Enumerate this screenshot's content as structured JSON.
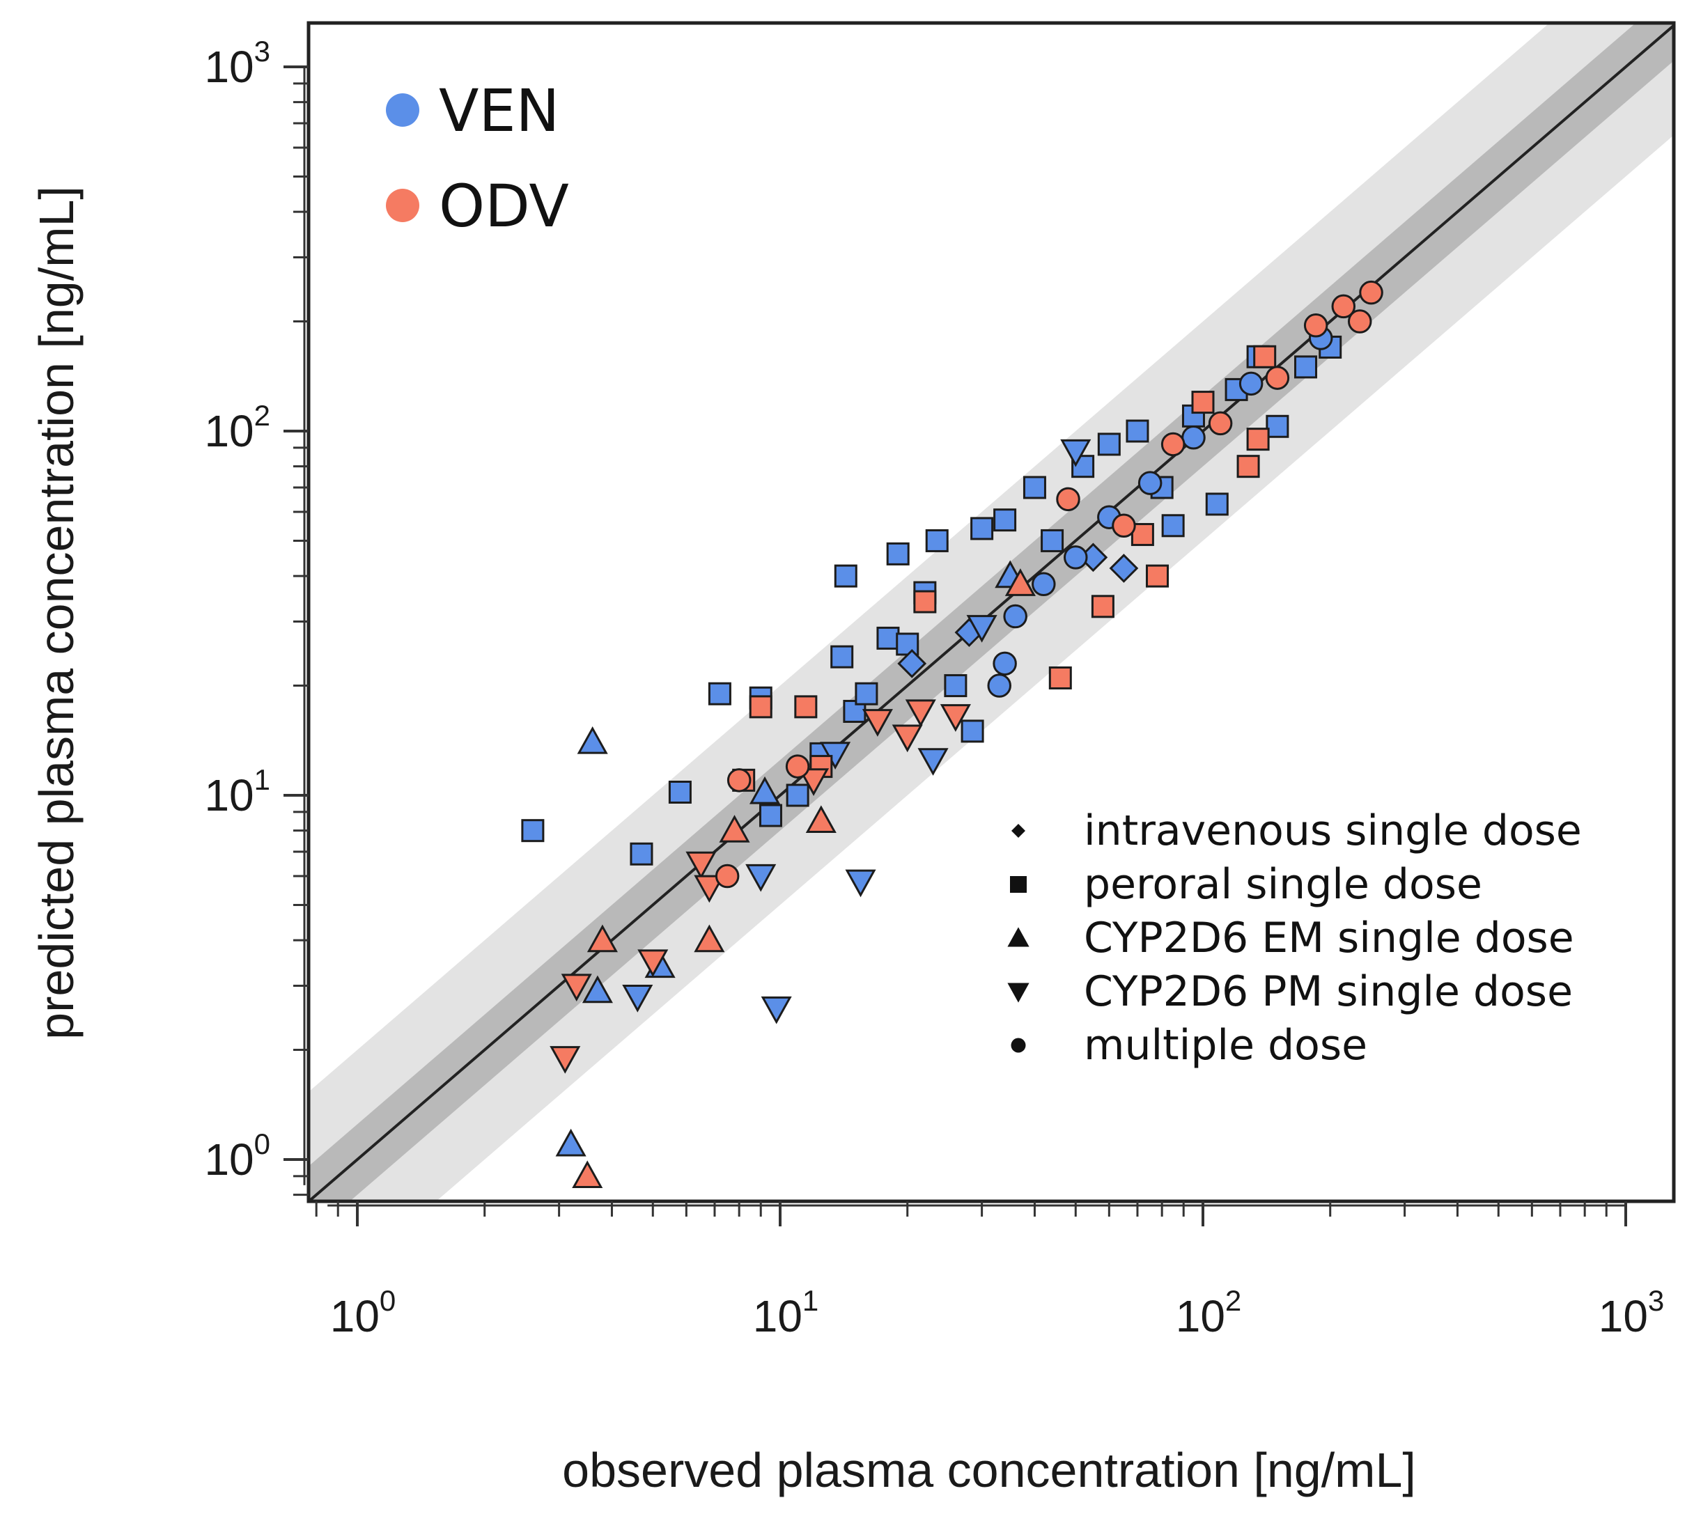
{
  "chart_data": {
    "type": "scatter",
    "title": "",
    "xlabel": "observed plasma concentration [ng/mL]",
    "ylabel": "predicted plasma concentration [ng/mL]",
    "x_scale": "log10",
    "y_scale": "log10",
    "xlim": [
      0.8,
      1300
    ],
    "ylim": [
      0.8,
      1300
    ],
    "x_ticks": [
      {
        "base": "10",
        "exp": "0",
        "value": 1
      },
      {
        "base": "10",
        "exp": "1",
        "value": 10
      },
      {
        "base": "10",
        "exp": "2",
        "value": 100
      },
      {
        "base": "10",
        "exp": "3",
        "value": 1000
      }
    ],
    "y_ticks": [
      {
        "base": "10",
        "exp": "0",
        "value": 1
      },
      {
        "base": "10",
        "exp": "1",
        "value": 10
      },
      {
        "base": "10",
        "exp": "2",
        "value": 100
      },
      {
        "base": "10",
        "exp": "3",
        "value": 1000
      }
    ],
    "grid": false,
    "reference_bands": [
      {
        "description": "line of identity",
        "factor": 1,
        "color": "#222222"
      },
      {
        "description": "1.25-fold",
        "factor": 1.25,
        "color": "#b9b9b9"
      },
      {
        "description": "2-fold",
        "factor": 2,
        "color": "#e3e3e3"
      }
    ],
    "legend_series": [
      {
        "label": "VEN",
        "color": "#5b8fe8"
      },
      {
        "label": "ODV",
        "color": "#f57b62"
      }
    ],
    "legend_shapes": [
      {
        "label": "intravenous single dose",
        "shape": "diamond"
      },
      {
        "label": "peroral single dose",
        "shape": "square"
      },
      {
        "label": "CYP2D6 EM single dose",
        "shape": "triangle-up"
      },
      {
        "label": "CYP2D6 PM single dose",
        "shape": "triangle-down"
      },
      {
        "label": "multiple dose",
        "shape": "circle"
      }
    ],
    "legend_placement": {
      "series": "top-left",
      "shapes": "bottom-right"
    },
    "series": [
      {
        "name": "VEN",
        "color": "#5b8fe8",
        "points": [
          {
            "x": 2.6,
            "y": 8.0,
            "shape": "square"
          },
          {
            "x": 4.7,
            "y": 6.9,
            "shape": "square"
          },
          {
            "x": 5.8,
            "y": 10.2,
            "shape": "square"
          },
          {
            "x": 7.2,
            "y": 19.0,
            "shape": "square"
          },
          {
            "x": 9.0,
            "y": 18.5,
            "shape": "square"
          },
          {
            "x": 9.5,
            "y": 8.8,
            "shape": "square"
          },
          {
            "x": 11.0,
            "y": 10.0,
            "shape": "square"
          },
          {
            "x": 12.5,
            "y": 13.0,
            "shape": "square"
          },
          {
            "x": 14.0,
            "y": 24.0,
            "shape": "square"
          },
          {
            "x": 14.3,
            "y": 40.0,
            "shape": "square"
          },
          {
            "x": 15.0,
            "y": 17.0,
            "shape": "square"
          },
          {
            "x": 16.0,
            "y": 19.0,
            "shape": "square"
          },
          {
            "x": 18.0,
            "y": 27.0,
            "shape": "square"
          },
          {
            "x": 19.0,
            "y": 46.0,
            "shape": "square"
          },
          {
            "x": 20.0,
            "y": 26.0,
            "shape": "square"
          },
          {
            "x": 22.0,
            "y": 36.0,
            "shape": "square"
          },
          {
            "x": 23.5,
            "y": 50.0,
            "shape": "square"
          },
          {
            "x": 26.0,
            "y": 20.0,
            "shape": "square"
          },
          {
            "x": 28.5,
            "y": 15.0,
            "shape": "square"
          },
          {
            "x": 30.0,
            "y": 54.0,
            "shape": "square"
          },
          {
            "x": 34.0,
            "y": 57.0,
            "shape": "square"
          },
          {
            "x": 40.0,
            "y": 70.0,
            "shape": "square"
          },
          {
            "x": 44.0,
            "y": 50.0,
            "shape": "square"
          },
          {
            "x": 52.0,
            "y": 80.0,
            "shape": "square"
          },
          {
            "x": 60.0,
            "y": 92.0,
            "shape": "square"
          },
          {
            "x": 70.0,
            "y": 100.0,
            "shape": "square"
          },
          {
            "x": 80.0,
            "y": 70.0,
            "shape": "square"
          },
          {
            "x": 85.0,
            "y": 55.0,
            "shape": "square"
          },
          {
            "x": 95.0,
            "y": 110.0,
            "shape": "square"
          },
          {
            "x": 108.0,
            "y": 63.0,
            "shape": "square"
          },
          {
            "x": 120.0,
            "y": 130.0,
            "shape": "square"
          },
          {
            "x": 135.0,
            "y": 160.0,
            "shape": "square"
          },
          {
            "x": 150.0,
            "y": 103.0,
            "shape": "square"
          },
          {
            "x": 175.0,
            "y": 150.0,
            "shape": "square"
          },
          {
            "x": 200.0,
            "y": 170.0,
            "shape": "square"
          },
          {
            "x": 20.5,
            "y": 23.0,
            "shape": "diamond"
          },
          {
            "x": 28.0,
            "y": 28.0,
            "shape": "diamond"
          },
          {
            "x": 55.0,
            "y": 45.0,
            "shape": "diamond"
          },
          {
            "x": 65.0,
            "y": 42.0,
            "shape": "diamond"
          },
          {
            "x": 3.6,
            "y": 14.0,
            "shape": "triangle-up"
          },
          {
            "x": 3.2,
            "y": 1.1,
            "shape": "triangle-up"
          },
          {
            "x": 3.7,
            "y": 2.9,
            "shape": "triangle-up"
          },
          {
            "x": 5.2,
            "y": 3.4,
            "shape": "triangle-up"
          },
          {
            "x": 9.2,
            "y": 10.2,
            "shape": "triangle-up"
          },
          {
            "x": 35.0,
            "y": 40.0,
            "shape": "triangle-up"
          },
          {
            "x": 4.6,
            "y": 2.8,
            "shape": "triangle-down"
          },
          {
            "x": 9.0,
            "y": 6.0,
            "shape": "triangle-down"
          },
          {
            "x": 9.8,
            "y": 2.6,
            "shape": "triangle-down"
          },
          {
            "x": 13.5,
            "y": 13.0,
            "shape": "triangle-down"
          },
          {
            "x": 15.5,
            "y": 5.8,
            "shape": "triangle-down"
          },
          {
            "x": 23.0,
            "y": 12.5,
            "shape": "triangle-down"
          },
          {
            "x": 30.0,
            "y": 29.0,
            "shape": "triangle-down"
          },
          {
            "x": 50.0,
            "y": 88.0,
            "shape": "triangle-down"
          },
          {
            "x": 33.0,
            "y": 20.0,
            "shape": "circle"
          },
          {
            "x": 34.0,
            "y": 23.0,
            "shape": "circle"
          },
          {
            "x": 36.0,
            "y": 31.0,
            "shape": "circle"
          },
          {
            "x": 42.0,
            "y": 38.0,
            "shape": "circle"
          },
          {
            "x": 50.0,
            "y": 45.0,
            "shape": "circle"
          },
          {
            "x": 60.0,
            "y": 58.0,
            "shape": "circle"
          },
          {
            "x": 75.0,
            "y": 72.0,
            "shape": "circle"
          },
          {
            "x": 95.0,
            "y": 96.0,
            "shape": "circle"
          },
          {
            "x": 130.0,
            "y": 135.0,
            "shape": "circle"
          },
          {
            "x": 190.0,
            "y": 180.0,
            "shape": "circle"
          }
        ]
      },
      {
        "name": "ODV",
        "color": "#f57b62",
        "points": [
          {
            "x": 8.2,
            "y": 11.0,
            "shape": "square"
          },
          {
            "x": 9.0,
            "y": 17.5,
            "shape": "square"
          },
          {
            "x": 11.5,
            "y": 17.5,
            "shape": "square"
          },
          {
            "x": 12.5,
            "y": 12.0,
            "shape": "square"
          },
          {
            "x": 22.0,
            "y": 34.0,
            "shape": "square"
          },
          {
            "x": 46.0,
            "y": 21.0,
            "shape": "square"
          },
          {
            "x": 58.0,
            "y": 33.0,
            "shape": "square"
          },
          {
            "x": 72.0,
            "y": 52.0,
            "shape": "square"
          },
          {
            "x": 78.0,
            "y": 40.0,
            "shape": "square"
          },
          {
            "x": 100.0,
            "y": 120.0,
            "shape": "square"
          },
          {
            "x": 128.0,
            "y": 80.0,
            "shape": "square"
          },
          {
            "x": 135.0,
            "y": 95.0,
            "shape": "square"
          },
          {
            "x": 140.0,
            "y": 160.0,
            "shape": "square"
          },
          {
            "x": 6.8,
            "y": 4.0,
            "shape": "triangle-up"
          },
          {
            "x": 3.8,
            "y": 4.0,
            "shape": "triangle-up"
          },
          {
            "x": 3.5,
            "y": 0.9,
            "shape": "triangle-up"
          },
          {
            "x": 7.8,
            "y": 8.0,
            "shape": "triangle-up"
          },
          {
            "x": 12.5,
            "y": 8.5,
            "shape": "triangle-up"
          },
          {
            "x": 37.0,
            "y": 38.0,
            "shape": "triangle-up"
          },
          {
            "x": 3.1,
            "y": 1.9,
            "shape": "triangle-down"
          },
          {
            "x": 3.3,
            "y": 3.0,
            "shape": "triangle-down"
          },
          {
            "x": 5.0,
            "y": 3.5,
            "shape": "triangle-down"
          },
          {
            "x": 6.5,
            "y": 6.5,
            "shape": "triangle-down"
          },
          {
            "x": 6.8,
            "y": 5.6,
            "shape": "triangle-down"
          },
          {
            "x": 12.0,
            "y": 11.0,
            "shape": "triangle-down"
          },
          {
            "x": 17.0,
            "y": 16.0,
            "shape": "triangle-down"
          },
          {
            "x": 20.0,
            "y": 14.5,
            "shape": "triangle-down"
          },
          {
            "x": 21.5,
            "y": 17.0,
            "shape": "triangle-down"
          },
          {
            "x": 26.0,
            "y": 16.5,
            "shape": "triangle-down"
          },
          {
            "x": 7.5,
            "y": 6.0,
            "shape": "circle"
          },
          {
            "x": 8.0,
            "y": 11.0,
            "shape": "circle"
          },
          {
            "x": 11.0,
            "y": 12.0,
            "shape": "circle"
          },
          {
            "x": 48.0,
            "y": 65.0,
            "shape": "circle"
          },
          {
            "x": 65.0,
            "y": 55.0,
            "shape": "circle"
          },
          {
            "x": 85.0,
            "y": 92.0,
            "shape": "circle"
          },
          {
            "x": 110.0,
            "y": 105.0,
            "shape": "circle"
          },
          {
            "x": 150.0,
            "y": 140.0,
            "shape": "circle"
          },
          {
            "x": 185.0,
            "y": 195.0,
            "shape": "circle"
          },
          {
            "x": 215.0,
            "y": 220.0,
            "shape": "circle"
          },
          {
            "x": 235.0,
            "y": 200.0,
            "shape": "circle"
          },
          {
            "x": 250.0,
            "y": 240.0,
            "shape": "circle"
          }
        ]
      }
    ]
  }
}
